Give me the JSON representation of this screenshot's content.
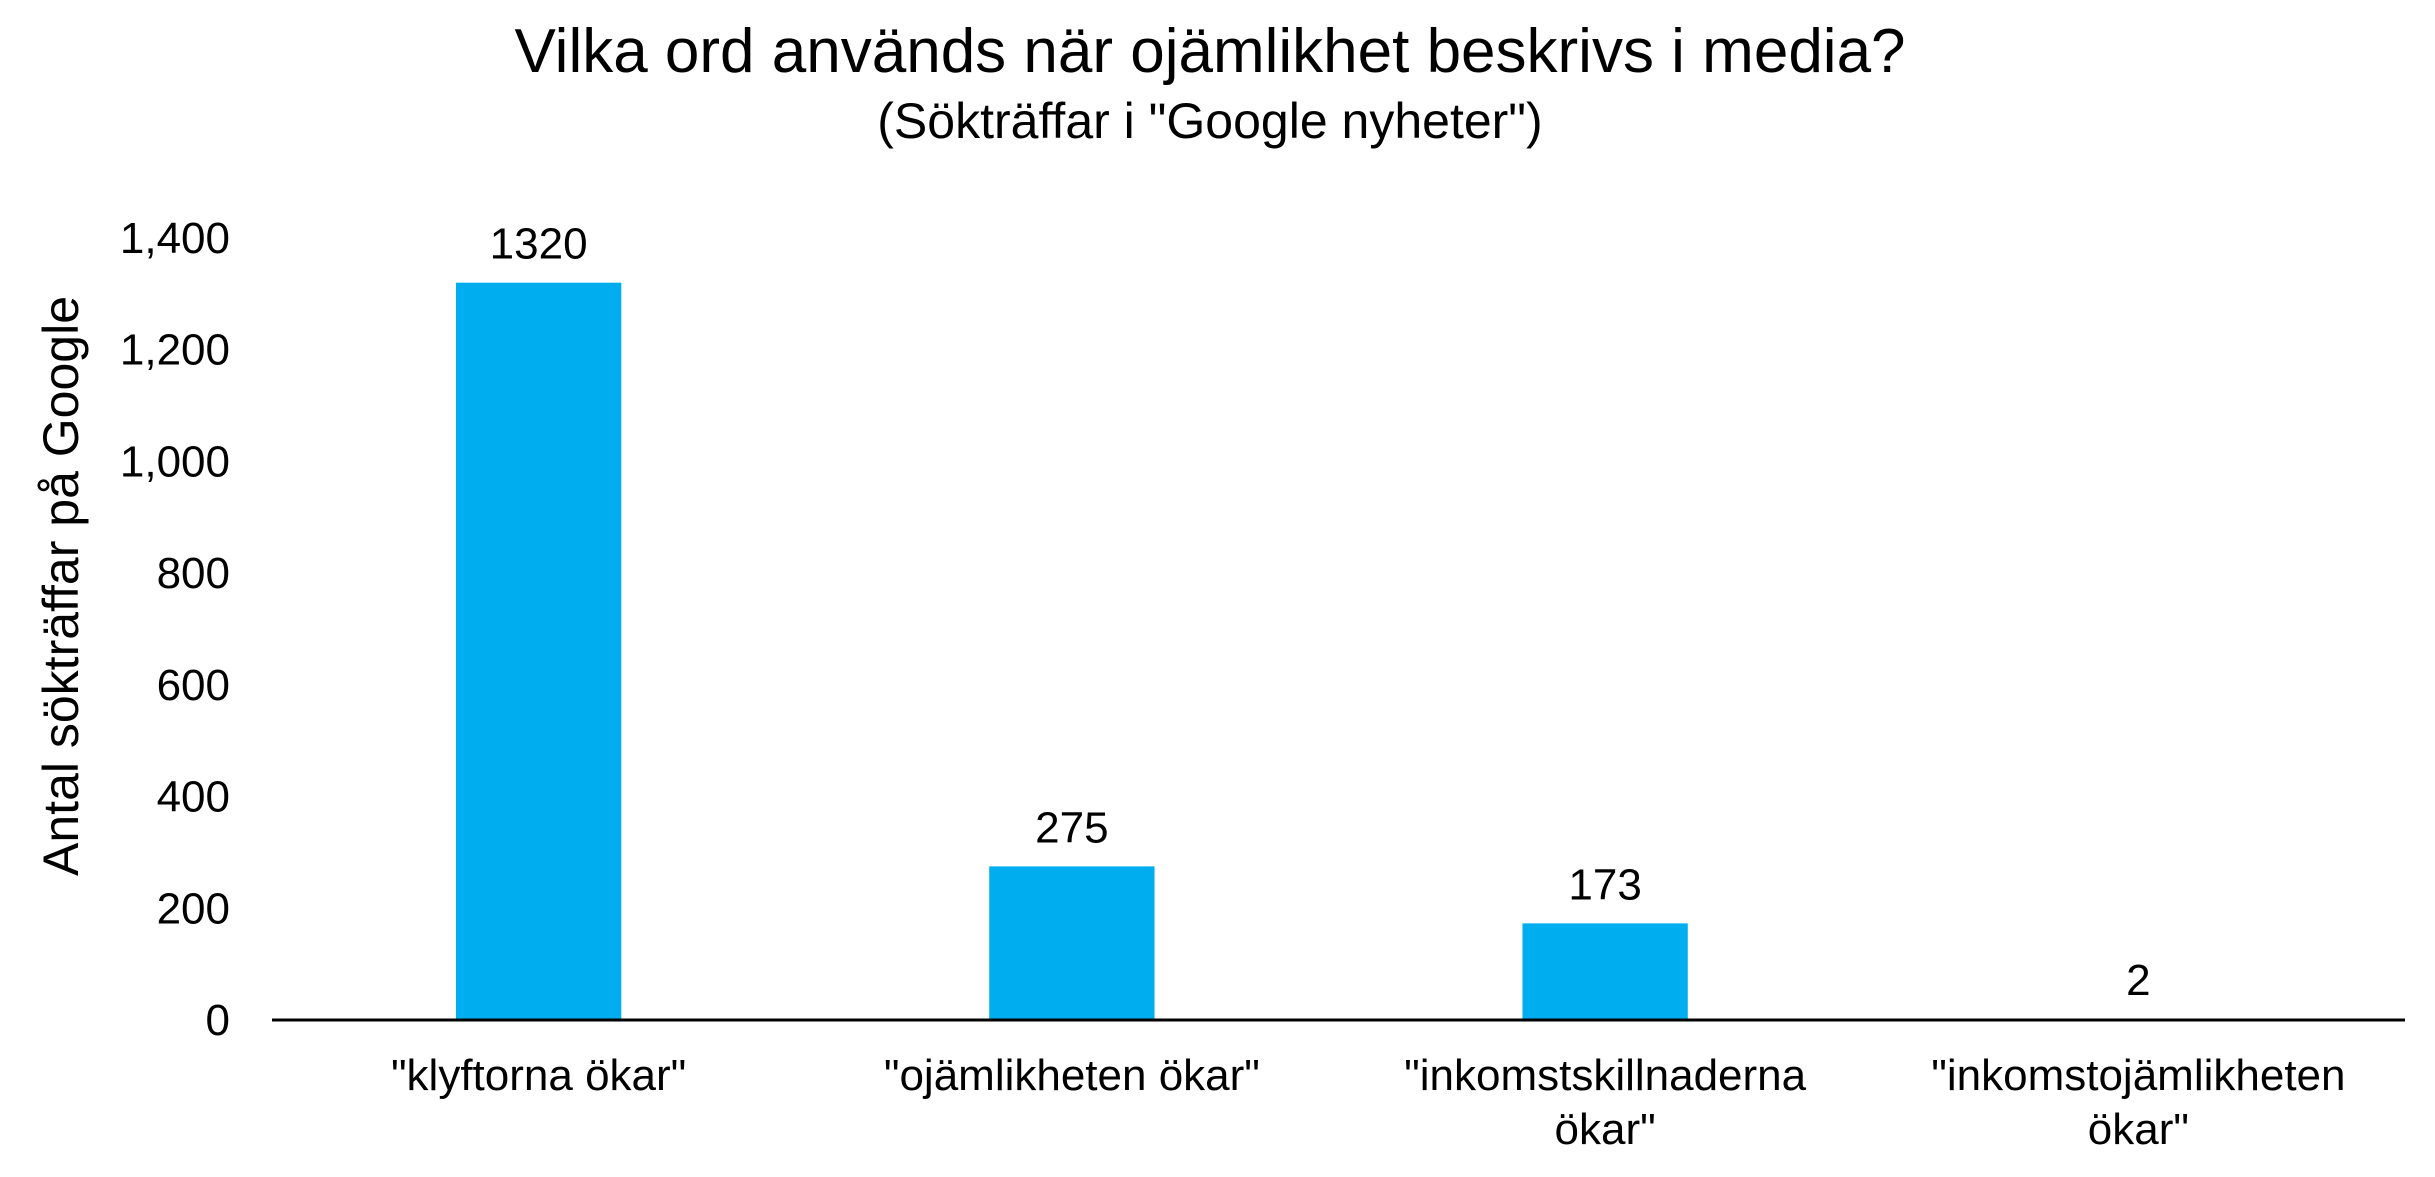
{
  "chart_data": {
    "type": "bar",
    "title": "Vilka ord används när ojämlikhet beskrivs i media?",
    "subtitle": "(Sökträffar i \"Google nyheter\")",
    "xlabel": "",
    "ylabel": "Antal sökträffar på Google",
    "categories": [
      [
        "\"klyftorna ökar\""
      ],
      [
        "\"ojämlikheten ökar\""
      ],
      [
        "\"inkomstskillnaderna",
        "ökar\""
      ],
      [
        "\"inkomstojämlikheten",
        "ökar\""
      ]
    ],
    "values": [
      1320,
      275,
      173,
      2
    ],
    "data_labels": [
      "1320",
      "275",
      "173",
      "2"
    ],
    "ylim": [
      0,
      1400
    ],
    "yticks": [
      0,
      200,
      400,
      600,
      800,
      1000,
      1200,
      1400
    ],
    "ytick_labels": [
      "0",
      "200",
      "400",
      "600",
      "800",
      "1,000",
      "1,200",
      "1,400"
    ],
    "bar_color": "#00AEEF",
    "axis_color": "#000000",
    "grid": false,
    "legend": "none"
  }
}
